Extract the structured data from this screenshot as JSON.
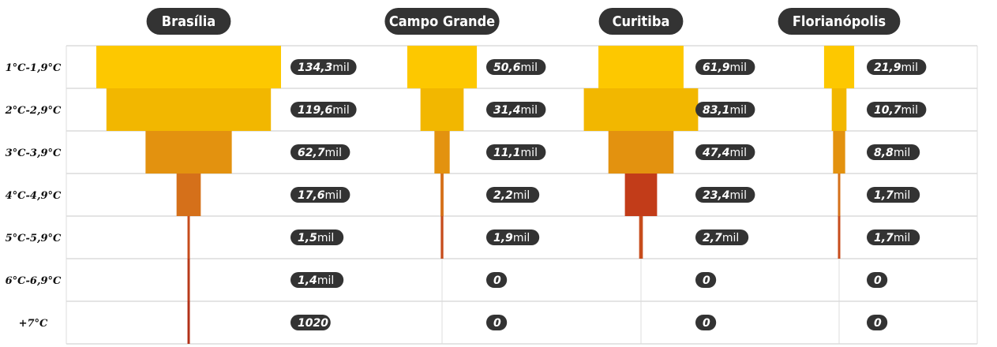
{
  "chart_data": {
    "type": "bar",
    "orientation": "horizontal-centered",
    "categories": [
      "1°C-1,9°C",
      "2°C-2,9°C",
      "3°C-3,9°C",
      "4°C-4,9°C",
      "5°C-5,9°C",
      "6°C-6,9°C",
      "+7°C"
    ],
    "series": [
      {
        "name": "Brasília",
        "values": [
          134300,
          119600,
          62700,
          17600,
          1500,
          1400,
          1020
        ],
        "value_labels": [
          {
            "n": "134,3",
            "u": "mil"
          },
          {
            "n": "119,6",
            "u": "mil"
          },
          {
            "n": "62,7",
            "u": "mil"
          },
          {
            "n": "17,6",
            "u": "mil"
          },
          {
            "n": "1,5",
            "u": "mil"
          },
          {
            "n": "1,4",
            "u": "mil"
          },
          {
            "n": "1020",
            "u": ""
          }
        ]
      },
      {
        "name": "Campo Grande",
        "values": [
          50600,
          31400,
          11100,
          2200,
          1900,
          0,
          0
        ],
        "value_labels": [
          {
            "n": "50,6",
            "u": "mil"
          },
          {
            "n": "31,4",
            "u": "mil"
          },
          {
            "n": "11,1",
            "u": "mil"
          },
          {
            "n": "2,2",
            "u": "mil"
          },
          {
            "n": "1,9",
            "u": "mil"
          },
          {
            "n": "0",
            "u": ""
          },
          {
            "n": "0",
            "u": ""
          }
        ]
      },
      {
        "name": "Curitiba",
        "values": [
          61900,
          83100,
          47400,
          23400,
          2700,
          0,
          0
        ],
        "value_labels": [
          {
            "n": "61,9",
            "u": "mil"
          },
          {
            "n": "83,1",
            "u": "mil"
          },
          {
            "n": "47,4",
            "u": "mil"
          },
          {
            "n": "23,4",
            "u": "mil"
          },
          {
            "n": "2,7",
            "u": "mil"
          },
          {
            "n": "0",
            "u": ""
          },
          {
            "n": "0",
            "u": ""
          }
        ]
      },
      {
        "name": "Florianópolis",
        "values": [
          21900,
          10700,
          8800,
          1700,
          1700,
          0,
          0
        ],
        "value_labels": [
          {
            "n": "21,9",
            "u": "mil"
          },
          {
            "n": "10,7",
            "u": "mil"
          },
          {
            "n": "8,8",
            "u": "mil"
          },
          {
            "n": "1,7",
            "u": "mil"
          },
          {
            "n": "1,7",
            "u": "mil"
          },
          {
            "n": "0",
            "u": ""
          },
          {
            "n": "0",
            "u": ""
          }
        ]
      }
    ],
    "row_colors": [
      "#fdc800",
      "#f2b700",
      "#e3920f",
      "#d5701a",
      "#c74c1c",
      "#b83a1a",
      "#b23018"
    ],
    "highlight_colors": {
      "Curitiba": [
        "#fdc800",
        "#f2b700",
        "#e3920f",
        "#c23c19",
        "#c74c1c",
        "#b83a1a",
        "#b23018"
      ]
    },
    "label_bg": "#333333",
    "title_bg": "#333333",
    "grid": true
  }
}
